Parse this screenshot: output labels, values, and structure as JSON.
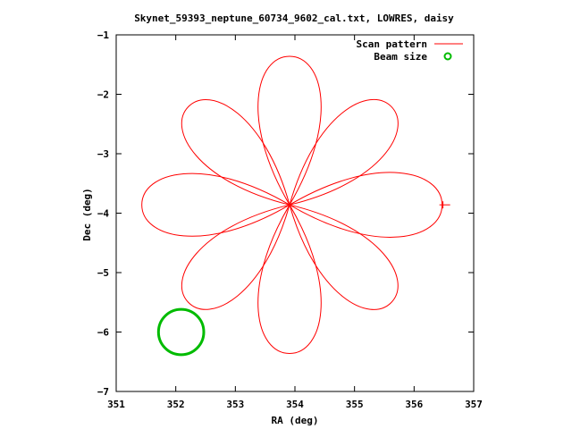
{
  "chart_data": {
    "type": "line",
    "title": "Skynet_59393_neptune_60734_9602_cal.txt, LOWRES, daisy",
    "xlabel": "RA (deg)",
    "ylabel": "Dec (deg)",
    "xlim": [
      351,
      357
    ],
    "ylim": [
      -7,
      -1
    ],
    "xticks": [
      "351",
      "352",
      "353",
      "354",
      "355",
      "356",
      "357"
    ],
    "yticks": [
      "-1",
      "-2",
      "-3",
      "-4",
      "-5",
      "-6",
      "-7"
    ],
    "grid": false,
    "legend_position": "top-right",
    "center": [
      353.91,
      -3.86
    ],
    "petals": [
      {
        "angle_deg": 0,
        "tip": [
          356.47,
          -3.86
        ]
      },
      {
        "angle_deg": 45,
        "tip": [
          355.62,
          -2.21
        ]
      },
      {
        "angle_deg": 90,
        "tip": [
          353.91,
          -1.36
        ]
      },
      {
        "angle_deg": 135,
        "tip": [
          352.21,
          -2.21
        ]
      },
      {
        "angle_deg": 180,
        "tip": [
          351.43,
          -3.86
        ]
      },
      {
        "angle_deg": 225,
        "tip": [
          352.21,
          -5.5
        ]
      },
      {
        "angle_deg": 270,
        "tip": [
          353.91,
          -6.36
        ]
      },
      {
        "angle_deg": 315,
        "tip": [
          355.62,
          -5.5
        ]
      }
    ],
    "series": [
      {
        "name": "Scan pattern",
        "color": "#ff0000",
        "kind": "line"
      },
      {
        "name": "Beam size",
        "color": "#00bb00",
        "kind": "circle",
        "center": [
          352.09,
          -6.0
        ],
        "radius_deg": 0.38
      }
    ]
  }
}
